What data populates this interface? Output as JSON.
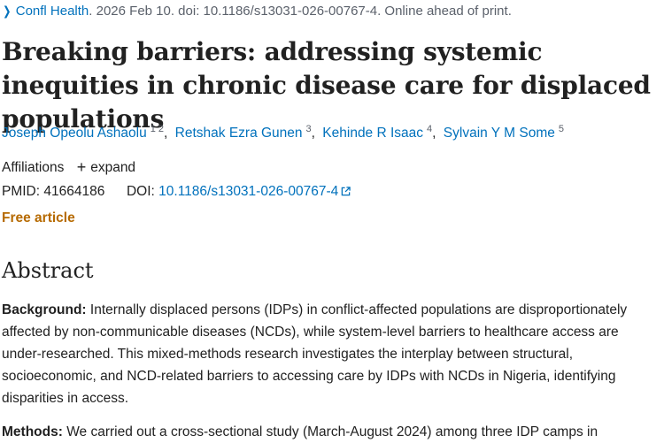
{
  "citation": {
    "chevron_icon": "chevron-right-icon",
    "journal": "Confl Health",
    "rest": ". 2026 Feb 10. doi: 10.1186/s13031-026-00767-4. Online ahead of print."
  },
  "title": "Breaking barriers: addressing systemic inequities in chronic disease care for displaced populations",
  "authors": [
    {
      "name": "Joseph Opeolu Ashaolu",
      "sup": "1 2"
    },
    {
      "name": "Retshak Ezra Gunen",
      "sup": "3"
    },
    {
      "name": "Kehinde R Isaac",
      "sup": "4"
    },
    {
      "name": "Sylvain Y M Some",
      "sup": "5"
    }
  ],
  "affiliations": {
    "label": "Affiliations",
    "expand_label": "expand",
    "expand_icon": "plus-icon"
  },
  "ids": {
    "pmid_label": "PMID: 41664186",
    "doi_label": "DOI:",
    "doi_value": "10.1186/s13031-026-00767-4",
    "external_icon": "external-link-icon"
  },
  "free_article": "Free article",
  "abstract": {
    "heading": "Abstract",
    "background_label": "Background:",
    "background_text": " Internally displaced persons (IDPs) in conflict-affected populations are disproportionately affected by non-communicable diseases (NCDs), while system-level barriers to healthcare access are under-researched. This mixed-methods research investigates the interplay between structural, socioeconomic, and NCD-related barriers to accessing care by IDPs with NCDs in Nigeria, identifying disparities in access.",
    "methods_label": "Methods:",
    "methods_text": " We carried out a cross-sectional study (March-August 2024) among three IDP camps in"
  },
  "colors": {
    "link": "#0071bc",
    "free_article": "#b66a00",
    "text": "#212121",
    "muted": "#5b616b"
  }
}
